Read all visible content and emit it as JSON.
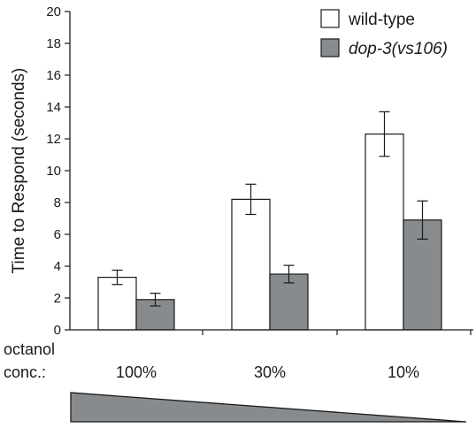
{
  "chart_data": {
    "type": "bar",
    "title": "",
    "xlabel": "",
    "ylabel": "Time to Respond (seconds)",
    "ylim": [
      0,
      20
    ],
    "yticks": [
      0,
      2,
      4,
      6,
      8,
      10,
      12,
      14,
      16,
      18,
      20
    ],
    "grid": false,
    "legend_position": "top-right",
    "categories": [
      "100%",
      "30%",
      "10%"
    ],
    "category_axis_label": [
      "octanol",
      "conc.:"
    ],
    "series": [
      {
        "name": "wild-type",
        "italic": false,
        "color": "#ffffff",
        "values": [
          3.3,
          8.2,
          12.3
        ],
        "errors": [
          0.45,
          0.95,
          1.4
        ]
      },
      {
        "name": "dop-3(vs106)",
        "italic": true,
        "color": "#888b8d",
        "values": [
          1.9,
          3.5,
          6.9
        ],
        "errors": [
          0.4,
          0.55,
          1.2
        ]
      }
    ],
    "concentration_wedge": {
      "direction": "decreasing",
      "color": "#888b8d"
    }
  }
}
